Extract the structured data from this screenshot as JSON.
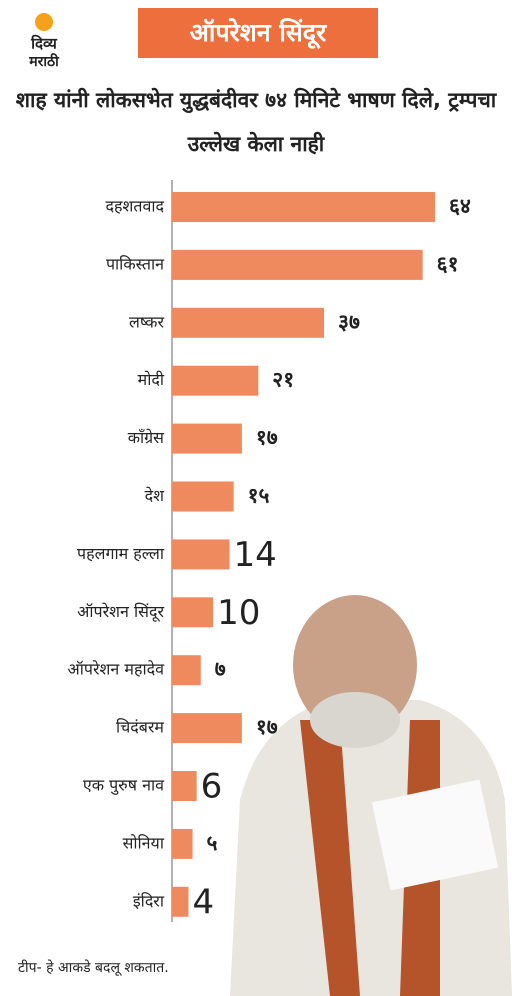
{
  "brand": {
    "line1": "दिव्य",
    "line2": "मराठी"
  },
  "chart_data": {
    "type": "hbar",
    "title": "ऑपरेशन सिंदूर",
    "subtitle": "शाह यांनी लोकसभेत युद्धबंदीवर ७४ मिनिटे भाषण दिले, ट्रम्पचा उल्लेख केला नाही",
    "categories": [
      "दहशतवाद",
      "पाकिस्तान",
      "लष्कर",
      "मोदी",
      "काँग्रेस",
      "देश",
      "पहलगाम हल्ला",
      "ऑपरेशन सिंदूर",
      "ऑपरेशन महादेव",
      "चिदंबरम",
      "एक पुरुष नाव",
      "सोनिया",
      "इंदिरा"
    ],
    "values": [
      64,
      61,
      37,
      21,
      17,
      15,
      14,
      10,
      7,
      17,
      6,
      5,
      4
    ],
    "value_labels": [
      "६४",
      "६१",
      "३७",
      "२१",
      "१७",
      "१५",
      "14",
      "10",
      "७",
      "१७",
      "6",
      "५",
      "4"
    ],
    "color": "#ef8a5f",
    "note": "टीप- हे आकडे बदलू शकतात."
  }
}
